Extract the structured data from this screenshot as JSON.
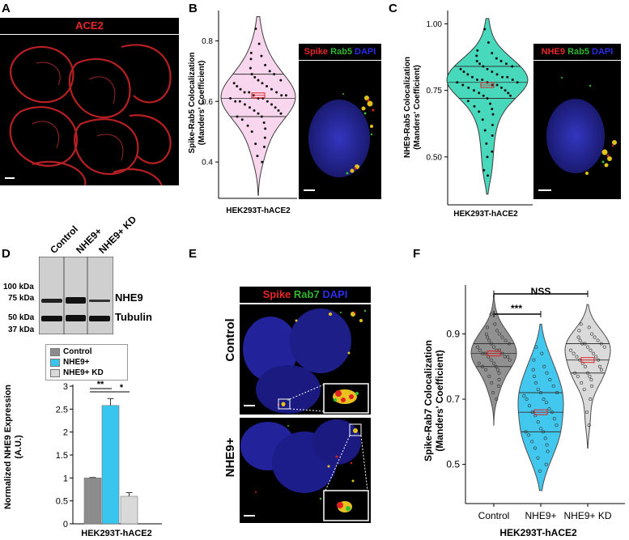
{
  "panels": {
    "a": {
      "letter": "A",
      "title": "ACE2"
    },
    "b": {
      "letter": "B",
      "img_labels": [
        "Spike",
        "Rab5",
        "DAPI"
      ]
    },
    "c": {
      "letter": "C",
      "img_labels": [
        "NHE9",
        "Rab5",
        "DAPI"
      ]
    },
    "d": {
      "letter": "D",
      "lanes": [
        "Control",
        "NHE9+",
        "NHE9+ KD"
      ],
      "kda": [
        "100 kDa",
        "75 kDa",
        "50 kDa",
        "37 kDa"
      ],
      "bands": [
        "NHE9",
        "Tubulin"
      ],
      "legend": [
        "Control",
        "NHE9+",
        "NHE9+ KD"
      ],
      "sig": [
        "**",
        "*"
      ]
    },
    "e": {
      "letter": "E",
      "img_labels": [
        "Spike",
        "Rab7",
        "DAPI"
      ],
      "rows": [
        "Control",
        "NHE9+"
      ]
    },
    "f": {
      "letter": "F",
      "sig": [
        "NSS",
        "***"
      ]
    }
  },
  "colors": {
    "ace2": "#e8262a",
    "spike": "#e8262a",
    "rab": "#2fb52f",
    "dapi": "#2a2ee8",
    "violin_b": "#f7d4ee",
    "violin_c": "#3fd6b8",
    "control": "#8c8c8c",
    "nhe9": "#38c6ee",
    "kd": "#d9d9d9"
  },
  "chart_data": [
    {
      "type": "violin",
      "panel": "B",
      "xlabel": "HEK293T-hACE2",
      "ylabel": "Spike-Rab5 Colocalization\n(Manders' Coefficient)",
      "yticks": [
        0.4,
        0.6,
        0.8
      ],
      "ylim": [
        0.28,
        0.9
      ],
      "series": [
        {
          "category": "HEK293T-hACE2",
          "mean": 0.62,
          "median": 0.61,
          "q1": 0.55,
          "q3": 0.69,
          "points": [
            0.84,
            0.79,
            0.76,
            0.75,
            0.74,
            0.72,
            0.71,
            0.7,
            0.69,
            0.69,
            0.68,
            0.67,
            0.67,
            0.66,
            0.66,
            0.65,
            0.65,
            0.64,
            0.64,
            0.63,
            0.63,
            0.63,
            0.62,
            0.62,
            0.62,
            0.61,
            0.61,
            0.61,
            0.6,
            0.6,
            0.6,
            0.59,
            0.59,
            0.58,
            0.58,
            0.57,
            0.57,
            0.56,
            0.56,
            0.55,
            0.55,
            0.54,
            0.53,
            0.52,
            0.51,
            0.5,
            0.48,
            0.46,
            0.45,
            0.42,
            0.4
          ]
        }
      ]
    },
    {
      "type": "violin",
      "panel": "C",
      "xlabel": "HEK293T-hACE2",
      "ylabel": "NHE9-Rab5 Colocalization\n(Manders' Coefficient)",
      "yticks": [
        0.5,
        0.75,
        1.0
      ],
      "ytick_labels": [
        "0.50",
        "0.75",
        "1.00"
      ],
      "ylim": [
        0.32,
        1.05
      ],
      "series": [
        {
          "category": "HEK293T-hACE2",
          "mean": 0.77,
          "median": 0.78,
          "q1": 0.72,
          "q3": 0.84,
          "points": [
            0.98,
            0.93,
            0.9,
            0.89,
            0.88,
            0.87,
            0.86,
            0.86,
            0.85,
            0.85,
            0.84,
            0.84,
            0.83,
            0.83,
            0.82,
            0.82,
            0.81,
            0.81,
            0.8,
            0.8,
            0.8,
            0.79,
            0.79,
            0.79,
            0.78,
            0.78,
            0.78,
            0.77,
            0.77,
            0.77,
            0.76,
            0.76,
            0.75,
            0.75,
            0.74,
            0.74,
            0.73,
            0.73,
            0.72,
            0.71,
            0.7,
            0.69,
            0.68,
            0.67,
            0.66,
            0.64,
            0.62,
            0.6,
            0.58,
            0.55,
            0.52,
            0.5,
            0.45,
            0.43
          ]
        }
      ]
    },
    {
      "type": "bar",
      "panel": "D",
      "xlabel": "HEK293T-hACE2",
      "ylabel": "Normalized NHE9 Expression\n(A.U.)",
      "categories": [
        "Control",
        "NHE9+",
        "NHE9+ KD"
      ],
      "values": [
        1.0,
        2.58,
        0.6
      ],
      "errors": [
        0.01,
        0.15,
        0.08
      ],
      "ylim": [
        0,
        3
      ],
      "yticks": [
        0,
        0.5,
        1,
        1.5,
        2,
        2.5,
        3
      ]
    },
    {
      "type": "violin",
      "panel": "F",
      "xlabel": "HEK293T-hACE2",
      "ylabel": "Spike-Rab7 Colocalization\n(Manders' Coefficient)",
      "categories": [
        "Control",
        "NHE9+",
        "NHE9+ KD"
      ],
      "yticks": [
        0.5,
        0.7,
        0.9
      ],
      "ylim": [
        0.38,
        1.05
      ],
      "series": [
        {
          "name": "Control",
          "mean": 0.84,
          "median": 0.84,
          "q1": 0.8,
          "q3": 0.87,
          "points": [
            0.96,
            0.93,
            0.92,
            0.91,
            0.9,
            0.9,
            0.89,
            0.89,
            0.88,
            0.88,
            0.87,
            0.87,
            0.86,
            0.86,
            0.85,
            0.85,
            0.85,
            0.84,
            0.84,
            0.84,
            0.83,
            0.83,
            0.83,
            0.82,
            0.82,
            0.81,
            0.81,
            0.8,
            0.8,
            0.79,
            0.79,
            0.78,
            0.77,
            0.76,
            0.75,
            0.74,
            0.72,
            0.7
          ]
        },
        {
          "name": "NHE9+",
          "mean": 0.66,
          "median": 0.66,
          "q1": 0.6,
          "q3": 0.72,
          "points": [
            0.86,
            0.84,
            0.82,
            0.8,
            0.79,
            0.78,
            0.77,
            0.76,
            0.75,
            0.74,
            0.73,
            0.72,
            0.72,
            0.71,
            0.7,
            0.7,
            0.69,
            0.68,
            0.67,
            0.66,
            0.66,
            0.65,
            0.64,
            0.63,
            0.62,
            0.61,
            0.6,
            0.6,
            0.59,
            0.58,
            0.57,
            0.56,
            0.55,
            0.54,
            0.52,
            0.5,
            0.48
          ]
        },
        {
          "name": "NHE9+ KD",
          "mean": 0.82,
          "median": 0.82,
          "q1": 0.78,
          "q3": 0.87,
          "points": [
            0.93,
            0.92,
            0.91,
            0.9,
            0.89,
            0.89,
            0.88,
            0.88,
            0.87,
            0.87,
            0.87,
            0.86,
            0.86,
            0.85,
            0.85,
            0.84,
            0.84,
            0.83,
            0.83,
            0.82,
            0.82,
            0.81,
            0.8,
            0.8,
            0.79,
            0.78,
            0.78,
            0.77,
            0.77,
            0.76,
            0.75,
            0.74,
            0.73,
            0.7,
            0.66,
            0.62
          ]
        }
      ]
    }
  ]
}
